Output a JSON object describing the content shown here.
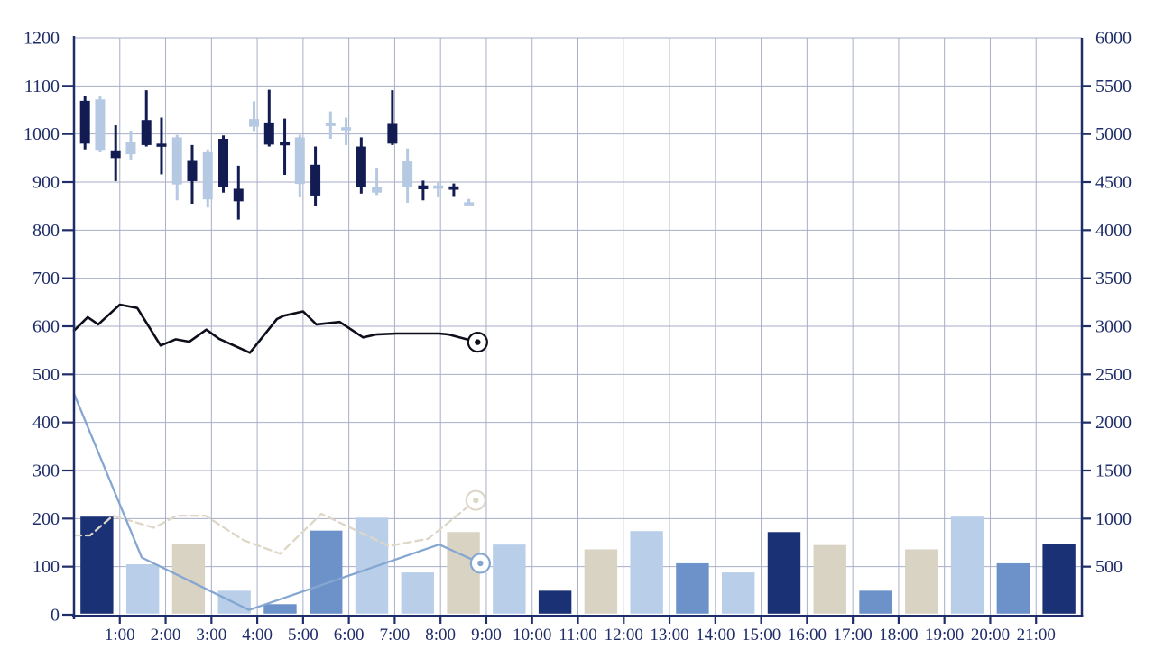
{
  "chart_data": {
    "type": "candlestick+line+bar",
    "title": "",
    "x_axis": {
      "unit": "hours",
      "start": 0,
      "end": 22,
      "tick_interval": 1,
      "tick_labels": [
        "1:00",
        "2:00",
        "3:00",
        "4:00",
        "5:00",
        "6:00",
        "7:00",
        "8:00",
        "9:00",
        "10:00",
        "11:00",
        "12:00",
        "13:00",
        "14:00",
        "15:00",
        "16:00",
        "17:00",
        "18:00",
        "19:00",
        "20:00",
        "21:00"
      ]
    },
    "left_axis": {
      "min": 0,
      "max": 1200,
      "step": 100,
      "tick_labels": [
        "0",
        "100",
        "200",
        "300",
        "400",
        "500",
        "600",
        "700",
        "800",
        "900",
        "1000",
        "1100",
        "1200"
      ]
    },
    "right_axis": {
      "min": 0,
      "max": 6000,
      "step": 500,
      "tick_labels": [
        "500",
        "1000",
        "1500",
        "2000",
        "2500",
        "3000",
        "3500",
        "4000",
        "4500",
        "5000",
        "5500",
        "6000"
      ]
    },
    "grid": {
      "on": true,
      "v_every_hours": 1,
      "h_every_units": 100
    },
    "candles": [
      [
        0.24,
        1080,
        968,
        1069,
        980,
        "d"
      ],
      [
        0.57,
        1078,
        962,
        1072,
        967,
        "l"
      ],
      [
        0.91,
        1018,
        902,
        966,
        950,
        "d"
      ],
      [
        1.24,
        1007,
        947,
        984,
        958,
        "l"
      ],
      [
        1.58,
        1091,
        974,
        1029,
        977,
        "d"
      ],
      [
        1.91,
        1034,
        916,
        980,
        974,
        "d"
      ],
      [
        2.25,
        998,
        862,
        993,
        895,
        "l"
      ],
      [
        2.58,
        977,
        855,
        944,
        902,
        "d"
      ],
      [
        2.92,
        968,
        847,
        962,
        864,
        "l"
      ],
      [
        3.26,
        997,
        878,
        990,
        890,
        "d"
      ],
      [
        3.59,
        934,
        822,
        886,
        860,
        "d"
      ],
      [
        3.93,
        1068,
        1006,
        1031,
        1015,
        "l"
      ],
      [
        4.26,
        1092,
        974,
        1024,
        978,
        "d"
      ],
      [
        4.6,
        1032,
        915,
        983,
        977,
        "d"
      ],
      [
        4.93,
        998,
        868,
        993,
        896,
        "l"
      ],
      [
        5.27,
        974,
        851,
        936,
        872,
        "d"
      ],
      [
        5.6,
        1047,
        990,
        1023,
        1017,
        "l"
      ],
      [
        5.94,
        1034,
        977,
        1014,
        1008,
        "l"
      ],
      [
        6.27,
        993,
        876,
        974,
        889,
        "d"
      ],
      [
        6.61,
        930,
        873,
        890,
        878,
        "l"
      ],
      [
        6.95,
        1091,
        977,
        1021,
        980,
        "d"
      ],
      [
        7.28,
        970,
        857,
        943,
        889,
        "l"
      ],
      [
        7.62,
        903,
        862,
        893,
        885,
        "d"
      ],
      [
        7.95,
        900,
        869,
        893,
        886,
        "l"
      ],
      [
        8.29,
        897,
        871,
        891,
        884,
        "d"
      ],
      [
        8.62,
        865,
        852,
        858,
        855,
        "l"
      ]
    ],
    "black_line": {
      "name": "price-line",
      "points": [
        [
          0,
          591
        ],
        [
          0.3,
          619
        ],
        [
          0.53,
          604
        ],
        [
          1.0,
          645
        ],
        [
          1.38,
          638
        ],
        [
          1.89,
          560
        ],
        [
          2.22,
          573
        ],
        [
          2.52,
          568
        ],
        [
          2.89,
          593
        ],
        [
          3.17,
          574
        ],
        [
          3.84,
          545
        ],
        [
          4.43,
          615
        ],
        [
          4.58,
          622
        ],
        [
          5.0,
          631
        ],
        [
          5.29,
          604
        ],
        [
          5.8,
          609
        ],
        [
          6.31,
          577
        ],
        [
          6.59,
          583
        ],
        [
          7.04,
          585
        ],
        [
          7.97,
          585
        ],
        [
          8.18,
          583
        ],
        [
          8.81,
          567
        ]
      ],
      "end_marker": true,
      "dashed": false
    },
    "blue_line": {
      "name": "indicator-line-blue",
      "points": [
        [
          0,
          460
        ],
        [
          1.48,
          119
        ],
        [
          3.82,
          10
        ],
        [
          7.97,
          146
        ],
        [
          8.87,
          107
        ]
      ],
      "end_marker": true,
      "dashed": false
    },
    "beige_line": {
      "name": "indicator-line-beige",
      "points": [
        [
          0,
          165
        ],
        [
          0.35,
          165
        ],
        [
          0.85,
          206
        ],
        [
          1.75,
          181
        ],
        [
          2.24,
          206
        ],
        [
          2.87,
          206
        ],
        [
          3.7,
          155
        ],
        [
          4.5,
          127
        ],
        [
          5.4,
          210
        ],
        [
          5.99,
          183
        ],
        [
          6.61,
          155
        ],
        [
          6.88,
          143
        ],
        [
          7.73,
          158
        ],
        [
          8.77,
          238
        ]
      ],
      "end_marker": true,
      "dashed": true
    },
    "bars": [
      [
        0.5,
        204,
        "navy"
      ],
      [
        1.5,
        105,
        "light"
      ],
      [
        2.5,
        147,
        "beige"
      ],
      [
        3.5,
        50,
        "light"
      ],
      [
        4.5,
        22,
        "medium"
      ],
      [
        5.5,
        175,
        "medium"
      ],
      [
        6.5,
        202,
        "light"
      ],
      [
        7.5,
        88,
        "light"
      ],
      [
        8.5,
        172,
        "beige"
      ],
      [
        9.5,
        146,
        "light"
      ],
      [
        10.5,
        50,
        "navy"
      ],
      [
        11.5,
        136,
        "beige"
      ],
      [
        12.5,
        174,
        "light"
      ],
      [
        13.5,
        107,
        "medium"
      ],
      [
        14.5,
        88,
        "light"
      ],
      [
        15.5,
        172,
        "navy"
      ],
      [
        16.5,
        145,
        "beige"
      ],
      [
        17.5,
        50,
        "medium"
      ],
      [
        18.5,
        136,
        "beige"
      ],
      [
        19.5,
        204,
        "light"
      ],
      [
        20.5,
        107,
        "medium"
      ],
      [
        21.5,
        147,
        "navy"
      ]
    ],
    "colors": {
      "axis": "#1f2d69",
      "label": "#1f2d69",
      "grid": "#a7aec6",
      "candle_dark": "#131c52",
      "candle_light": "#b6c9e2",
      "bar_navy": "#1b3176",
      "bar_light": "#b9cfe9",
      "bar_medium": "#6c92c9",
      "bar_beige": "#d9d3c4",
      "line_black": "#0d0e1a",
      "line_blue": "#86a6d2",
      "line_beige": "#ded7c8",
      "background": "#ffffff"
    }
  }
}
